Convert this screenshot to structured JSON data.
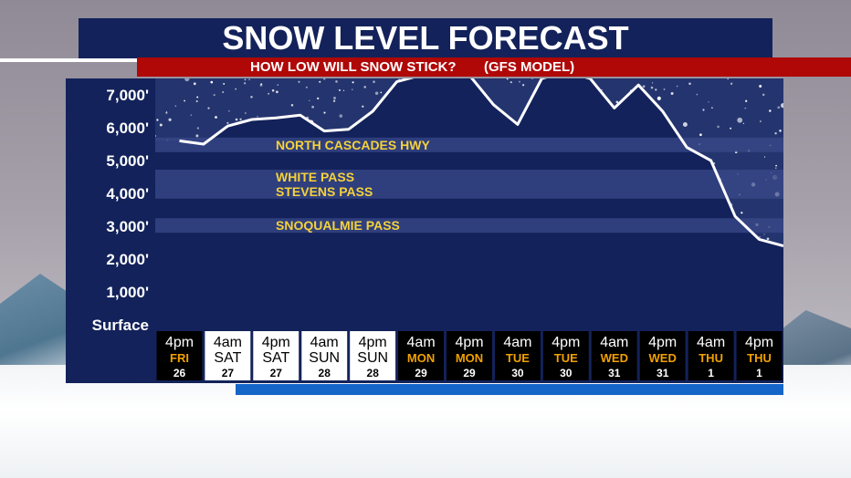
{
  "title": "SNOW LEVEL FORECAST",
  "subtitle": {
    "question": "HOW LOW WILL SNOW STICK?",
    "model": "(GFS MODEL)"
  },
  "colors": {
    "panel": "#13225a",
    "subtitle_bar": "#b00707",
    "pass_label": "#f4d23b",
    "band": "#3a4a8a",
    "weekday_orange": "#f2a100",
    "line": "#ffffff"
  },
  "chart_data": {
    "type": "line",
    "title": "SNOW LEVEL FORECAST",
    "ylim": [
      0,
      7300
    ],
    "y_ticks": [
      {
        "value": 7000,
        "label": "7,000'"
      },
      {
        "value": 6000,
        "label": "6,000'"
      },
      {
        "value": 5000,
        "label": "5,000'"
      },
      {
        "value": 4000,
        "label": "4,000'"
      },
      {
        "value": 3000,
        "label": "3,000'"
      },
      {
        "value": 2000,
        "label": "2,000'"
      },
      {
        "value": 1000,
        "label": "1,000'"
      },
      {
        "value": 0,
        "label": "Surface"
      }
    ],
    "categories": [
      {
        "time": "4pm",
        "day": "FRI",
        "date": "26",
        "light": false
      },
      {
        "time": "4am",
        "day": "SAT",
        "date": "27",
        "light": true
      },
      {
        "time": "4pm",
        "day": "SAT",
        "date": "27",
        "light": true
      },
      {
        "time": "4am",
        "day": "SUN",
        "date": "28",
        "light": true
      },
      {
        "time": "4pm",
        "day": "SUN",
        "date": "28",
        "light": true
      },
      {
        "time": "4am",
        "day": "MON",
        "date": "29",
        "light": false
      },
      {
        "time": "4pm",
        "day": "MON",
        "date": "29",
        "light": false
      },
      {
        "time": "4am",
        "day": "TUE",
        "date": "30",
        "light": false
      },
      {
        "time": "4pm",
        "day": "TUE",
        "date": "30",
        "light": false
      },
      {
        "time": "4am",
        "day": "WED",
        "date": "31",
        "light": false
      },
      {
        "time": "4pm",
        "day": "WED",
        "date": "31",
        "light": false
      },
      {
        "time": "4am",
        "day": "THU",
        "date": "1",
        "light": false
      },
      {
        "time": "4pm",
        "day": "THU",
        "date": "1",
        "light": false
      }
    ],
    "snow_level": [
      [
        0.0,
        5600
      ],
      [
        0.5,
        5500
      ],
      [
        1.0,
        6050
      ],
      [
        1.5,
        6250
      ],
      [
        2.0,
        6300
      ],
      [
        2.5,
        6380
      ],
      [
        3.0,
        5900
      ],
      [
        3.5,
        5950
      ],
      [
        4.0,
        6500
      ],
      [
        4.5,
        7400
      ],
      [
        5.0,
        7600
      ],
      [
        5.5,
        7600
      ],
      [
        6.0,
        7600
      ],
      [
        6.5,
        6700
      ],
      [
        7.0,
        6100
      ],
      [
        7.5,
        7500
      ],
      [
        8.0,
        7700
      ],
      [
        8.5,
        7500
      ],
      [
        9.0,
        6600
      ],
      [
        9.5,
        7300
      ],
      [
        10.0,
        6500
      ],
      [
        10.5,
        5400
      ],
      [
        11.0,
        5000
      ],
      [
        11.5,
        3300
      ],
      [
        12.0,
        2600
      ],
      [
        12.5,
        2400
      ]
    ],
    "passes": [
      {
        "name": "NORTH CASCADES HWY",
        "value": 5477
      },
      {
        "name": "WHITE PASS",
        "value": 4500
      },
      {
        "name": "STEVENS PASS",
        "value": 4061
      },
      {
        "name": "SNOQUALMIE PASS",
        "value": 3022
      }
    ],
    "grid": false,
    "legend": "none"
  }
}
